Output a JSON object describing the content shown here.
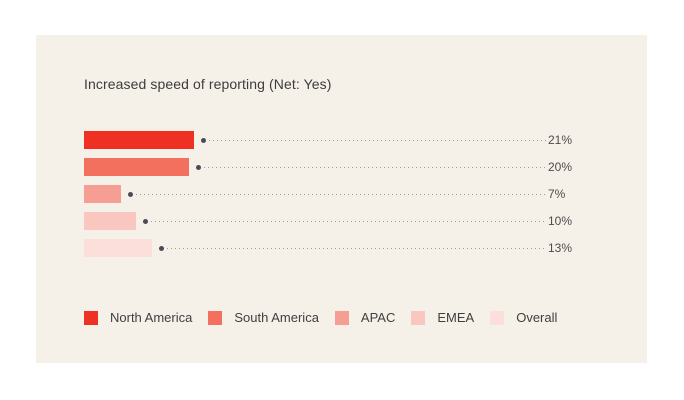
{
  "chart_data": {
    "type": "bar",
    "orientation": "horizontal",
    "title": "Increased speed of reporting (Net: Yes)",
    "categories": [
      "North America",
      "South America",
      "APAC",
      "EMEA",
      "Overall"
    ],
    "values": [
      21,
      20,
      7,
      10,
      13
    ],
    "unit": "%",
    "value_labels": [
      "21%",
      "20%",
      "7%",
      "10%",
      "13%"
    ],
    "series_colors": [
      "#ee3123",
      "#f3705e",
      "#f69e94",
      "#f9c6c0",
      "#fcdeda"
    ],
    "legend_position": "bottom",
    "grid": false,
    "axes_shown": false,
    "leader_lines": "dotted"
  },
  "colors": {
    "card_background": "#f5f1e9",
    "page_background": "#ffffff",
    "title_text": "#3c3c3c",
    "value_text": "#4d4d4d",
    "legend_text": "#3f3f3f",
    "leader_dot": "#4b4b52",
    "leader_line": "#9b9b9b"
  }
}
